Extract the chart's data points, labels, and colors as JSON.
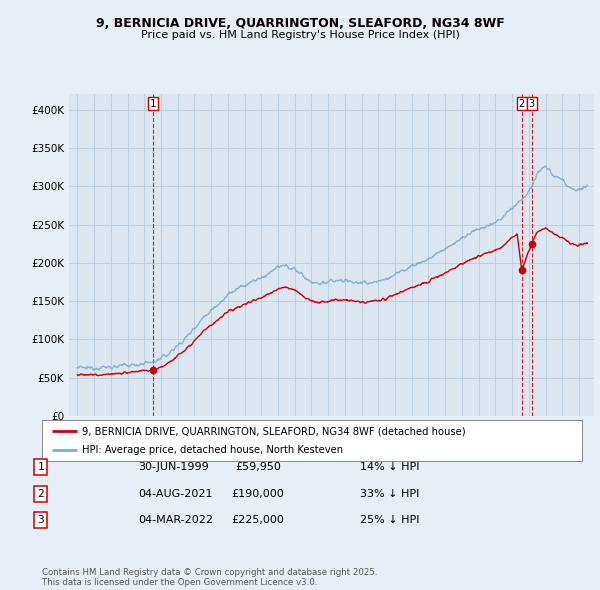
{
  "title_line1": "9, BERNICIA DRIVE, QUARRINGTON, SLEAFORD, NG34 8WF",
  "title_line2": "Price paid vs. HM Land Registry's House Price Index (HPI)",
  "legend_label_red": "9, BERNICIA DRIVE, QUARRINGTON, SLEAFORD, NG34 8WF (detached house)",
  "legend_label_blue": "HPI: Average price, detached house, North Kesteven",
  "transactions": [
    {
      "num": 1,
      "date": "30-JUN-1999",
      "price": 59950,
      "pct": "14%",
      "x": 1999.5
    },
    {
      "num": 2,
      "date": "04-AUG-2021",
      "price": 190000,
      "pct": "33%",
      "x": 2021.58
    },
    {
      "num": 3,
      "date": "04-MAR-2022",
      "price": 225000,
      "pct": "25%",
      "x": 2022.17
    }
  ],
  "footnote": "Contains HM Land Registry data © Crown copyright and database right 2025.\nThis data is licensed under the Open Government Licence v3.0.",
  "ylim": [
    0,
    420000
  ],
  "xlim": [
    1994.5,
    2025.9
  ],
  "yticks": [
    0,
    50000,
    100000,
    150000,
    200000,
    250000,
    300000,
    350000,
    400000
  ],
  "ytick_labels": [
    "£0",
    "£50K",
    "£100K",
    "£150K",
    "£200K",
    "£250K",
    "£300K",
    "£350K",
    "£400K"
  ],
  "color_red": "#cc0000",
  "color_blue": "#7aadcf",
  "color_dashed": "#cc0000",
  "bg_color": "#e8eef5",
  "plot_bg": "#dce6f0"
}
